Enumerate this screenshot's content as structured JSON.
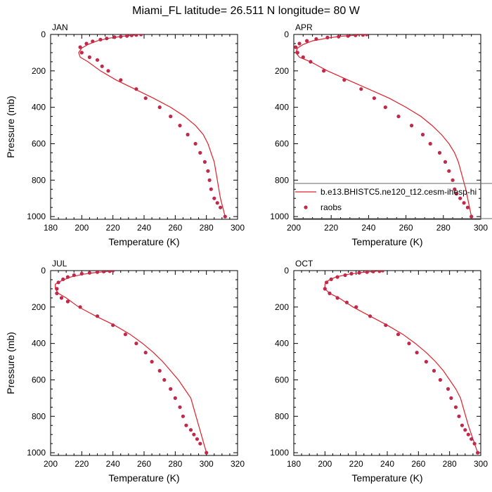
{
  "figure_title": "Miami_FL  latitude= 26.511 N longitude= 80 W",
  "colors": {
    "model_line": "#e0202a",
    "obs_marker": "#c0294a",
    "axis": "#000000"
  },
  "legend": {
    "placement": "lower-right of APR panel",
    "entries": [
      {
        "label": "b.e13.BHISTC5.ne120_t12.cesm-ihesp-hi",
        "kind": "line"
      },
      {
        "label": "raobs",
        "kind": "marker"
      }
    ]
  },
  "chart_data": [
    {
      "type": "line",
      "panel_label": "JAN",
      "xlabel": "Temperature (K)",
      "ylabel": "Pressure (mb)",
      "xlim": [
        180,
        300
      ],
      "ylim": [
        1015,
        0
      ],
      "xticks": [
        180,
        200,
        220,
        240,
        260,
        280,
        300
      ],
      "yticks": [
        0,
        200,
        400,
        600,
        800,
        1000
      ],
      "grid": false,
      "series": [
        {
          "name": "b.e13.BHISTC5.ne120_t12.cesm-ihesp-hi",
          "kind": "line",
          "x": [
            237,
            232,
            226,
            218,
            210,
            204,
            200,
            198,
            199,
            204,
            212,
            222,
            234,
            246,
            257,
            266,
            273,
            278,
            281,
            283,
            285,
            287,
            289,
            292
          ],
          "y": [
            0,
            5,
            10,
            20,
            35,
            55,
            75,
            100,
            125,
            150,
            200,
            250,
            300,
            350,
            400,
            450,
            500,
            550,
            600,
            650,
            700,
            800,
            900,
            1000
          ]
        },
        {
          "name": "raobs",
          "kind": "scatter",
          "x": [
            238,
            235,
            232,
            229,
            225,
            221,
            216,
            212,
            207,
            203,
            199,
            200,
            205,
            210,
            213,
            217,
            225,
            235,
            241,
            250,
            257,
            263,
            268,
            273,
            276,
            279,
            281,
            282,
            283,
            285,
            287,
            289,
            292
          ],
          "y": [
            0,
            3,
            5,
            8,
            12,
            15,
            22,
            28,
            38,
            50,
            70,
            100,
            125,
            140,
            175,
            200,
            250,
            300,
            350,
            400,
            450,
            500,
            550,
            600,
            650,
            700,
            750,
            800,
            850,
            900,
            925,
            950,
            1000
          ]
        }
      ]
    },
    {
      "type": "line",
      "panel_label": "APR",
      "xlabel": "Temperature (K)",
      "ylabel": "",
      "xlim": [
        200,
        300
      ],
      "ylim": [
        1015,
        0
      ],
      "xticks": [
        200,
        220,
        240,
        260,
        280,
        300
      ],
      "yticks": [
        0,
        200,
        400,
        600,
        800,
        1000
      ],
      "grid": false,
      "series": [
        {
          "name": "b.e13.BHISTC5.ne120_t12.cesm-ihesp-hi",
          "kind": "line",
          "x": [
            238,
            232,
            225,
            218,
            210,
            205,
            202,
            201,
            203,
            209,
            218,
            229,
            240,
            251,
            260,
            268,
            274,
            279,
            283,
            286,
            288,
            292,
            295
          ],
          "y": [
            0,
            5,
            10,
            20,
            35,
            55,
            75,
            100,
            125,
            150,
            200,
            250,
            300,
            350,
            400,
            450,
            500,
            550,
            600,
            650,
            700,
            850,
            1000
          ]
        },
        {
          "name": "raobs",
          "kind": "scatter",
          "x": [
            239,
            237,
            233,
            229,
            224,
            218,
            212,
            207,
            203,
            201,
            202,
            205,
            209,
            216,
            227,
            236,
            243,
            249,
            256,
            263,
            269,
            273,
            278,
            281,
            283,
            285,
            286,
            287,
            289,
            291,
            293,
            295
          ],
          "y": [
            0,
            3,
            5,
            8,
            12,
            17,
            25,
            35,
            50,
            70,
            100,
            125,
            150,
            200,
            250,
            300,
            350,
            400,
            450,
            500,
            550,
            600,
            650,
            700,
            750,
            800,
            850,
            875,
            900,
            925,
            950,
            1000
          ]
        }
      ]
    },
    {
      "type": "line",
      "panel_label": "JUL",
      "xlabel": "Temperature (K)",
      "ylabel": "Pressure (mb)",
      "xlim": [
        200,
        320
      ],
      "ylim": [
        1015,
        0
      ],
      "xticks": [
        200,
        220,
        240,
        260,
        280,
        300,
        320
      ],
      "yticks": [
        0,
        200,
        400,
        600,
        800,
        1000
      ],
      "grid": false,
      "series": [
        {
          "name": "b.e13.BHISTC5.ne120_t12.cesm-ihesp-hi",
          "kind": "line",
          "x": [
            241,
            236,
            229,
            221,
            213,
            207,
            203,
            203,
            205,
            210,
            218,
            229,
            241,
            251,
            259,
            266,
            272,
            277,
            282,
            286,
            290,
            295,
            300
          ],
          "y": [
            0,
            5,
            10,
            20,
            35,
            55,
            75,
            100,
            125,
            150,
            200,
            250,
            300,
            350,
            400,
            450,
            500,
            550,
            600,
            650,
            700,
            850,
            1000
          ]
        },
        {
          "name": "raobs",
          "kind": "scatter",
          "x": [
            240,
            238,
            234,
            230,
            225,
            220,
            215,
            211,
            208,
            205,
            204,
            204,
            207,
            211,
            219,
            230,
            240,
            248,
            255,
            261,
            265,
            270,
            273,
            277,
            280,
            283,
            285,
            287,
            290,
            292,
            294,
            296,
            300
          ],
          "y": [
            0,
            3,
            5,
            8,
            12,
            17,
            25,
            35,
            48,
            65,
            100,
            125,
            150,
            170,
            200,
            250,
            300,
            350,
            400,
            450,
            500,
            550,
            600,
            650,
            700,
            750,
            800,
            850,
            875,
            900,
            925,
            950,
            1000
          ]
        }
      ]
    },
    {
      "type": "line",
      "panel_label": "OCT",
      "xlabel": "Temperature (K)",
      "ylabel": "",
      "xlim": [
        180,
        300
      ],
      "ylim": [
        1015,
        0
      ],
      "xticks": [
        180,
        200,
        220,
        240,
        260,
        280,
        300
      ],
      "yticks": [
        0,
        200,
        400,
        600,
        800,
        1000
      ],
      "grid": false,
      "series": [
        {
          "name": "b.e13.BHISTC5.ne120_t12.cesm-ihesp-hi",
          "kind": "line",
          "x": [
            237,
            231,
            224,
            215,
            207,
            202,
            200,
            200,
            203,
            209,
            218,
            229,
            240,
            250,
            258,
            265,
            271,
            276,
            280,
            284,
            287,
            292,
            298
          ],
          "y": [
            0,
            5,
            10,
            20,
            35,
            55,
            75,
            100,
            125,
            150,
            200,
            250,
            300,
            350,
            400,
            450,
            500,
            550,
            600,
            650,
            700,
            850,
            1000
          ]
        },
        {
          "name": "raobs",
          "kind": "scatter",
          "x": [
            237,
            235,
            231,
            227,
            222,
            217,
            213,
            208,
            204,
            201,
            200,
            203,
            208,
            214,
            220,
            229,
            239,
            247,
            254,
            259,
            265,
            270,
            274,
            279,
            281,
            284,
            286,
            288,
            290,
            292,
            294,
            296,
            298
          ],
          "y": [
            0,
            3,
            5,
            8,
            12,
            17,
            25,
            35,
            48,
            65,
            100,
            125,
            150,
            175,
            200,
            250,
            300,
            350,
            400,
            450,
            500,
            550,
            600,
            650,
            700,
            750,
            800,
            850,
            875,
            900,
            925,
            950,
            1000
          ]
        }
      ]
    }
  ]
}
